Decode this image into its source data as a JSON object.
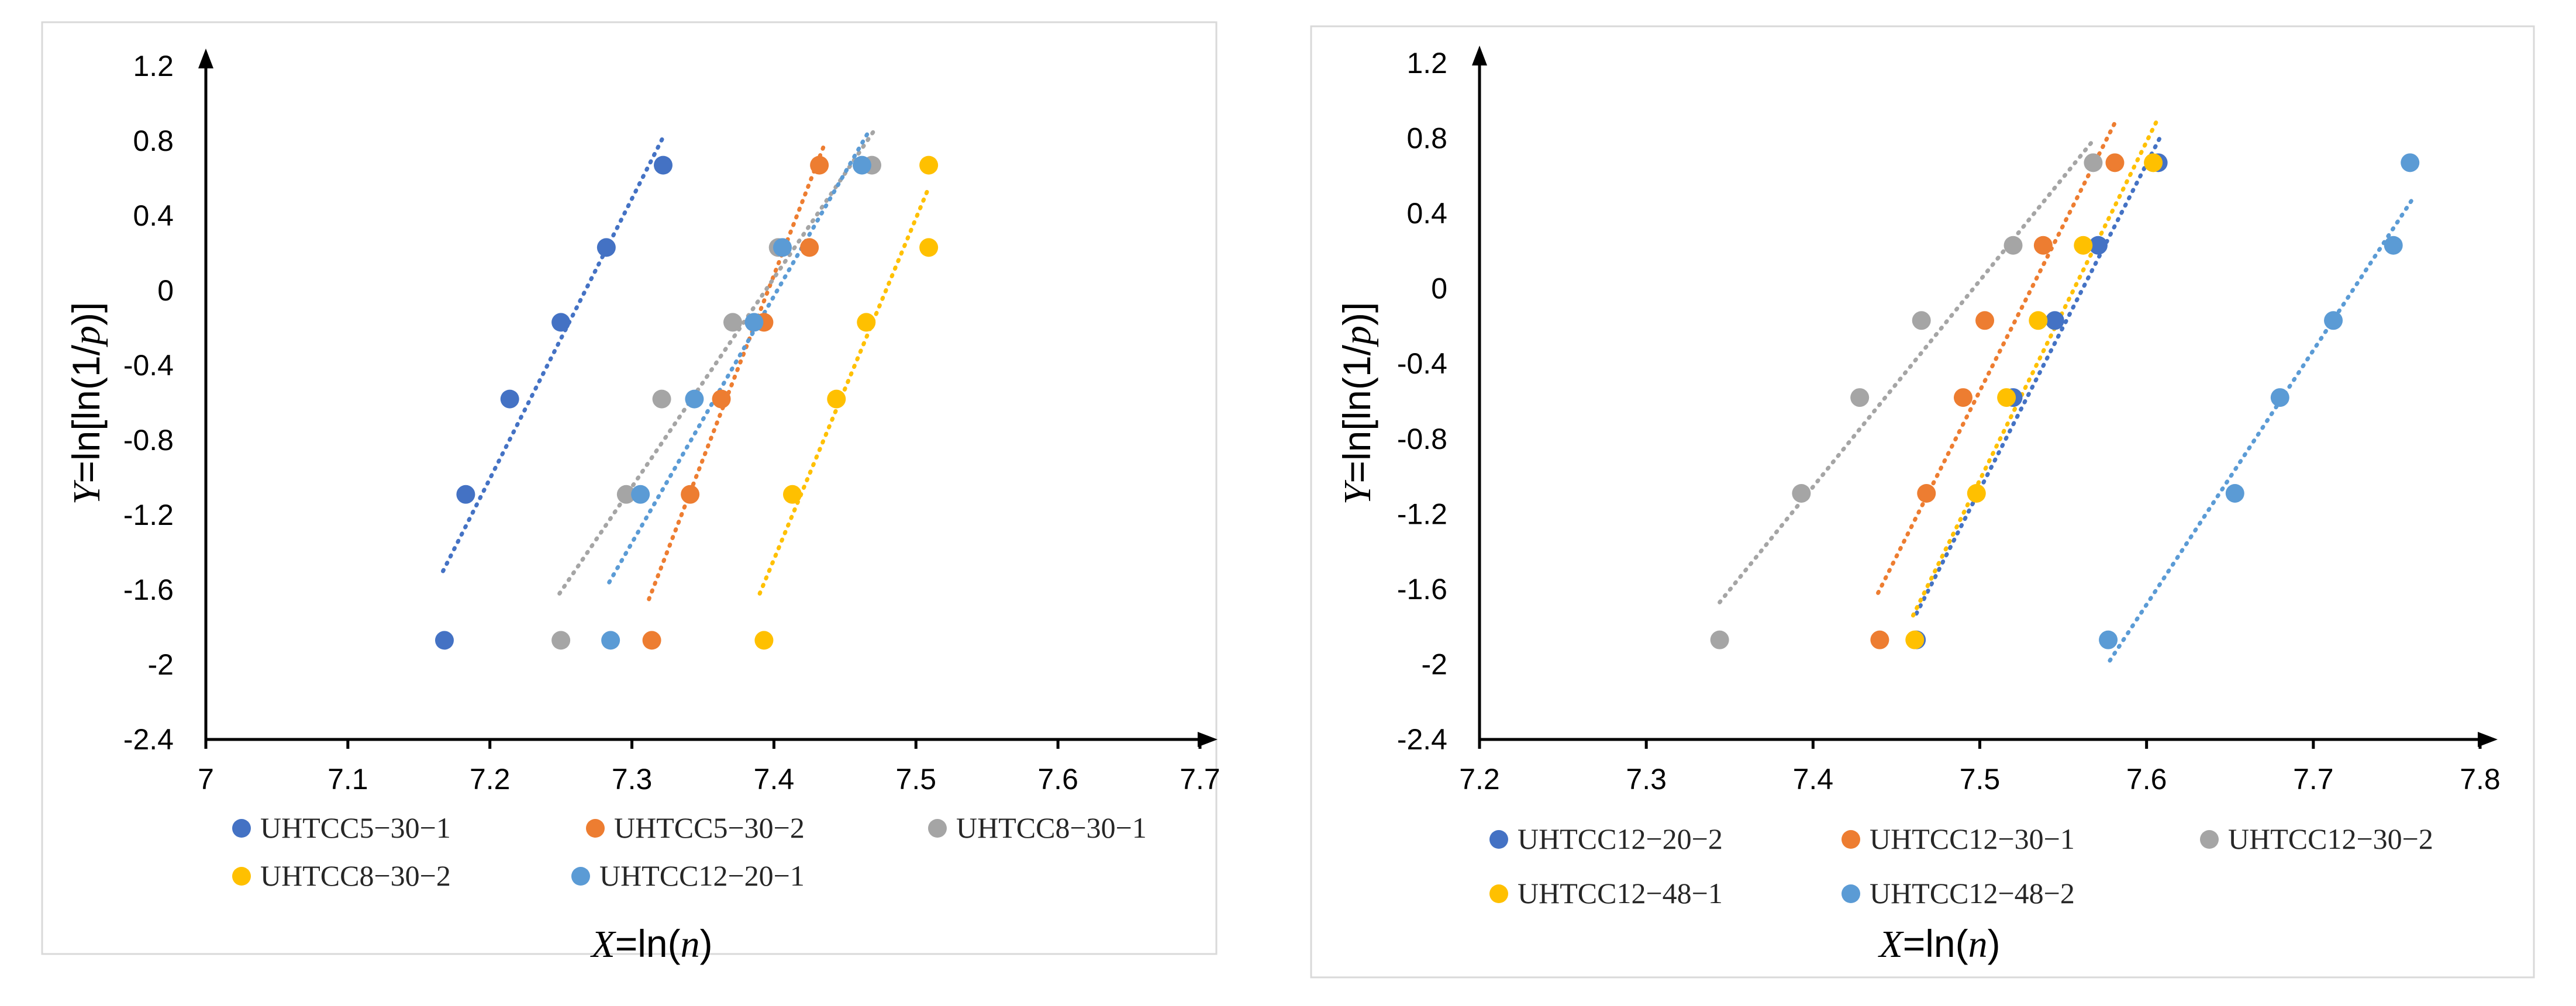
{
  "chart_data": [
    {
      "type": "scatter",
      "xlabel_var": "X",
      "xlabel_rest": "=ln(",
      "xlabel_arg": "n",
      "xlabel_close": ")",
      "ylabel_var": "Y",
      "ylabel_rest": "=ln[ln(1/",
      "ylabel_arg": "p",
      "ylabel_close": ")]",
      "xlim": [
        7,
        7.7
      ],
      "ylim": [
        -2.4,
        1.2
      ],
      "xticks": [
        7,
        7.1,
        7.2,
        7.3,
        7.4,
        7.5,
        7.6,
        7.7
      ],
      "xtick_labels": [
        "7",
        "7.1",
        "7.2",
        "7.3",
        "7.4",
        "7.5",
        "7.6",
        "7.7"
      ],
      "yticks": [
        -2.4,
        -2,
        -1.6,
        -1.2,
        -0.8,
        -0.4,
        0,
        0.4,
        0.8,
        1.2
      ],
      "ytick_labels": [
        "-2.4",
        "-2",
        "-1.6",
        "-1.2",
        "-0.8",
        "-0.4",
        "0",
        "0.4",
        "0.8",
        "1.2"
      ],
      "grid": false,
      "legend_position": "bottom",
      "series": [
        {
          "name": "UHTCC5−30−1",
          "color": "#4472c4",
          "x": [
            7.168,
            7.183,
            7.214,
            7.25,
            7.282,
            7.322
          ],
          "y": [
            -1.87,
            -1.09,
            -0.58,
            -0.17,
            0.23,
            0.67
          ],
          "trend": [
            [
              7.167,
              -1.5
            ],
            [
              7.322,
              0.82
            ]
          ]
        },
        {
          "name": "UHTCC5−30−2",
          "color": "#ed7d31",
          "x": [
            7.314,
            7.341,
            7.363,
            7.393,
            7.425,
            7.432
          ],
          "y": [
            -1.87,
            -1.09,
            -0.58,
            -0.17,
            0.23,
            0.67
          ],
          "trend": [
            [
              7.312,
              -1.65
            ],
            [
              7.436,
              0.79
            ]
          ]
        },
        {
          "name": "UHTCC8−30−1",
          "color": "#a5a5a5",
          "x": [
            7.25,
            7.296,
            7.321,
            7.371,
            7.403,
            7.469
          ],
          "y": [
            -1.87,
            -1.09,
            -0.58,
            -0.17,
            0.23,
            0.67
          ],
          "trend": [
            [
              7.249,
              -1.62
            ],
            [
              7.471,
              0.86
            ]
          ]
        },
        {
          "name": "UHTCC8−30−2",
          "color": "#ffc000",
          "x": [
            7.393,
            7.413,
            7.444,
            7.465,
            7.509,
            7.509
          ],
          "y": [
            -1.87,
            -1.09,
            -0.58,
            -0.17,
            0.23,
            0.67
          ],
          "trend": [
            [
              7.39,
              -1.62
            ],
            [
              7.509,
              0.55
            ]
          ]
        },
        {
          "name": "UHTCC12−20−1",
          "color": "#5b9bd5",
          "x": [
            7.285,
            7.306,
            7.344,
            7.386,
            7.406,
            7.462
          ],
          "y": [
            -1.87,
            -1.09,
            -0.58,
            -0.17,
            0.23,
            0.67
          ],
          "trend": [
            [
              7.284,
              -1.56
            ],
            [
              7.466,
              0.84
            ]
          ]
        }
      ]
    },
    {
      "type": "scatter",
      "xlabel_var": "X",
      "xlabel_rest": "=ln(",
      "xlabel_arg": "n",
      "xlabel_close": ")",
      "ylabel_var": "Y",
      "ylabel_rest": "=ln[ln(1/",
      "ylabel_arg": "p",
      "ylabel_close": ")]",
      "xlim": [
        7.2,
        7.8
      ],
      "ylim": [
        -2.4,
        1.2
      ],
      "xticks": [
        7.2,
        7.3,
        7.4,
        7.5,
        7.6,
        7.7,
        7.8
      ],
      "xtick_labels": [
        "7.2",
        "7.3",
        "7.4",
        "7.5",
        "7.6",
        "7.7",
        "7.8"
      ],
      "yticks": [
        -2.4,
        -2,
        -1.6,
        -1.2,
        -0.8,
        -0.4,
        0,
        0.4,
        0.8,
        1.2
      ],
      "ytick_labels": [
        "-2.4",
        "-2",
        "-1.6",
        "-1.2",
        "-0.8",
        "-0.4",
        "0",
        "0.4",
        "0.8",
        "1.2"
      ],
      "grid": false,
      "legend_position": "bottom",
      "series": [
        {
          "name": "UHTCC12−20−2",
          "color": "#4472c4",
          "x": [
            7.462,
            7.52,
            7.545,
            7.571,
            7.607
          ],
          "y": [
            -1.87,
            -0.58,
            -0.17,
            0.23,
            0.67
          ],
          "trend": [
            [
              7.462,
              -1.73
            ],
            [
              7.609,
              0.82
            ]
          ]
        },
        {
          "name": "UHTCC12−30−1",
          "color": "#ed7d31",
          "x": [
            7.44,
            7.468,
            7.49,
            7.503,
            7.538,
            7.581
          ],
          "y": [
            -1.87,
            -1.09,
            -0.58,
            -0.17,
            0.23,
            0.67
          ],
          "trend": [
            [
              7.439,
              -1.62
            ],
            [
              7.582,
              0.9
            ]
          ]
        },
        {
          "name": "UHTCC12−30−2",
          "color": "#a5a5a5",
          "x": [
            7.344,
            7.393,
            7.428,
            7.465,
            7.52,
            7.568
          ],
          "y": [
            -1.87,
            -1.09,
            -0.58,
            -0.17,
            0.23,
            0.67
          ],
          "trend": [
            [
              7.344,
              -1.67
            ],
            [
              7.569,
              0.8
            ]
          ]
        },
        {
          "name": "UHTCC12−48−1",
          "color": "#ffc000",
          "x": [
            7.461,
            7.498,
            7.516,
            7.535,
            7.562,
            7.604
          ],
          "y": [
            -1.87,
            -1.09,
            -0.58,
            -0.17,
            0.23,
            0.67
          ],
          "trend": [
            [
              7.46,
              -1.74
            ],
            [
              7.606,
              0.89
            ]
          ]
        },
        {
          "name": "UHTCC12−48−2",
          "color": "#5b9bd5",
          "x": [
            7.577,
            7.653,
            7.68,
            7.712,
            7.748,
            7.758
          ],
          "y": [
            -1.87,
            -1.09,
            -0.58,
            -0.17,
            0.23,
            0.67
          ],
          "trend": [
            [
              7.578,
              -1.98
            ],
            [
              7.759,
              0.47
            ]
          ]
        }
      ]
    }
  ]
}
